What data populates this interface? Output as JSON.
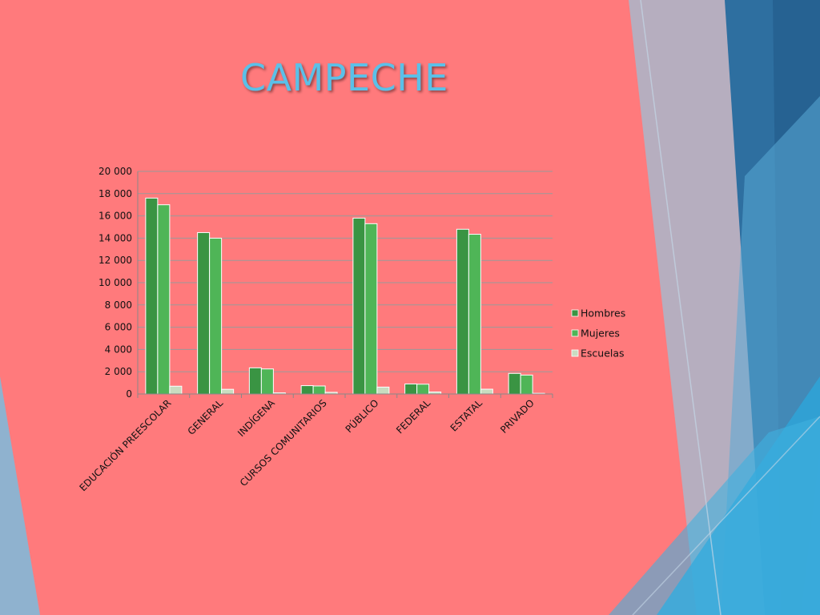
{
  "slide": {
    "title": "CAMPECHE",
    "background": "#ff7a7c",
    "title_color": "#5bc0e8"
  },
  "chart_data": {
    "type": "bar",
    "categories": [
      "EDUCACIÓN PREESCOLAR",
      "GENERAL",
      "INDÍGENA",
      "CURSOS COMUNITARIOS",
      "PÚBLICO",
      "FEDERAL",
      "ESTATAL",
      "PRIVADO"
    ],
    "series": [
      {
        "name": "Hombres",
        "values": [
          17600,
          14500,
          2350,
          750,
          15800,
          900,
          14800,
          1850
        ],
        "color": "#3a9443"
      },
      {
        "name": "Mujeres",
        "values": [
          17000,
          14000,
          2250,
          720,
          15300,
          880,
          14350,
          1700
        ],
        "color": "#4fb557"
      },
      {
        "name": "Escuelas",
        "values": [
          700,
          420,
          100,
          150,
          620,
          180,
          430,
          60
        ],
        "color": "#c9dcc0"
      }
    ],
    "y_ticks": [
      "0",
      "2 000",
      "4 000",
      "6 000",
      "8 000",
      "10 000",
      "12 000",
      "14 000",
      "16 000",
      "18 000",
      "20 000"
    ],
    "ylim": [
      0,
      20000
    ],
    "xlabel": "",
    "ylabel": "",
    "grid": true,
    "legend": "right"
  }
}
